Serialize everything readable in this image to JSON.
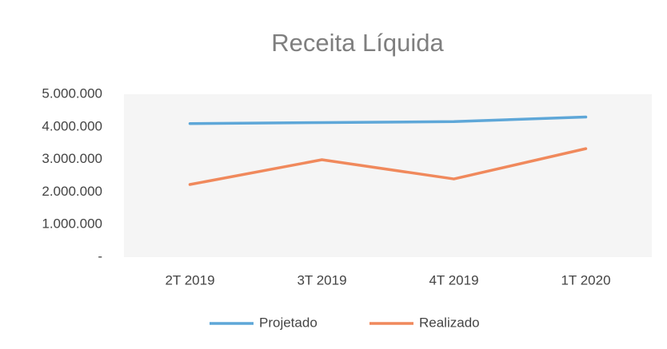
{
  "chart_data": {
    "type": "line",
    "title": "Receita Líquida",
    "categories": [
      "2T 2019",
      "3T 2019",
      "4T 2019",
      "1T 2020"
    ],
    "series": [
      {
        "name": "Projetado",
        "color": "#5ea7d8",
        "values": [
          4100000,
          4130000,
          4160000,
          4300000
        ]
      },
      {
        "name": "Realizado",
        "color": "#f0895c",
        "values": [
          2230000,
          2990000,
          2400000,
          3330000
        ]
      }
    ],
    "ylim": [
      0,
      5000000
    ],
    "yticks": [
      {
        "value": 0,
        "label": "-"
      },
      {
        "value": 1000000,
        "label": "1.000.000"
      },
      {
        "value": 2000000,
        "label": "2.000.000"
      },
      {
        "value": 3000000,
        "label": "3.000.000"
      },
      {
        "value": 4000000,
        "label": "4.000.000"
      },
      {
        "value": 5000000,
        "label": "5.000.000"
      }
    ],
    "legend": "bottom"
  }
}
